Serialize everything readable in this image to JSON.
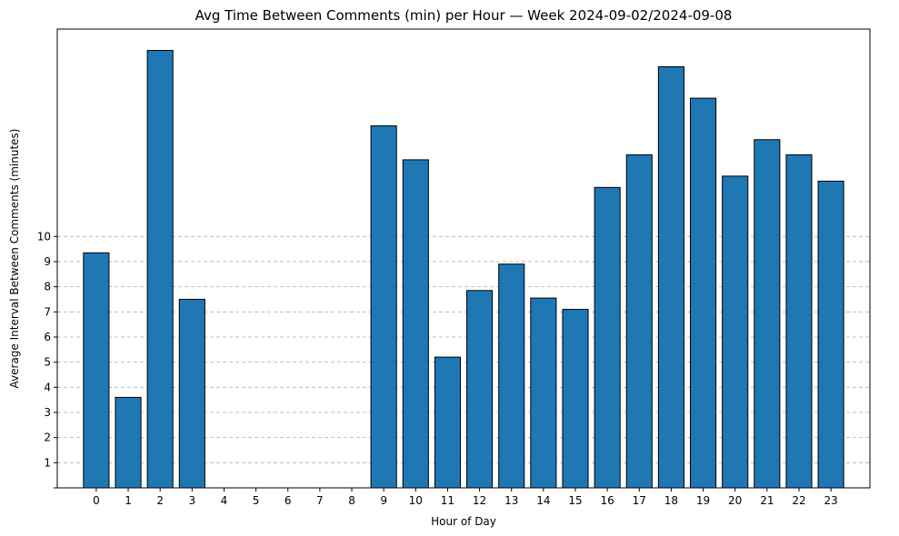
{
  "chart_data": {
    "type": "bar",
    "title": "Avg Time Between Comments (min) per Hour — Week 2024-09-02/2024-09-08",
    "xlabel": "Hour of Day",
    "ylabel": "Average Interval Between Comments (minutes)",
    "categories": [
      "0",
      "1",
      "2",
      "3",
      "4",
      "5",
      "6",
      "7",
      "8",
      "9",
      "10",
      "11",
      "12",
      "13",
      "14",
      "15",
      "16",
      "17",
      "18",
      "19",
      "20",
      "21",
      "22",
      "23"
    ],
    "values": [
      9.35,
      3.6,
      17.4,
      7.5,
      0,
      0,
      0,
      0,
      0,
      14.4,
      13.05,
      5.2,
      7.85,
      8.9,
      7.55,
      7.1,
      11.95,
      13.25,
      16.75,
      15.5,
      12.4,
      13.85,
      13.25,
      12.2
    ],
    "ylim": [
      0,
      18.25
    ],
    "yticks": [
      1,
      2,
      3,
      4,
      5,
      6,
      7,
      8,
      9,
      10
    ],
    "grid": "y",
    "bar_color": "#1f77b4",
    "edge_color": "#000000"
  }
}
